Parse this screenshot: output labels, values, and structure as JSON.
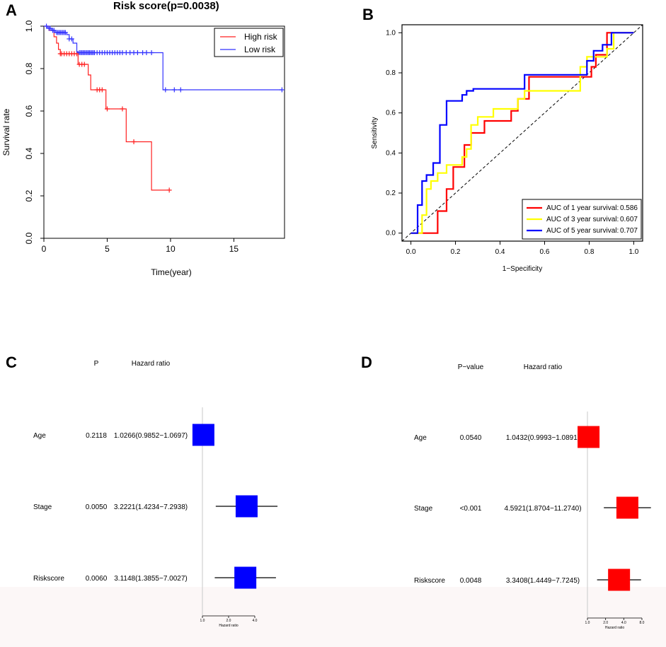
{
  "panels": {
    "A": {
      "letter": "A",
      "title": "Risk score(p=0.0038)"
    },
    "B": {
      "letter": "B"
    },
    "C": {
      "letter": "C"
    },
    "D": {
      "letter": "D"
    }
  },
  "chart_data": [
    {
      "id": "A",
      "type": "line",
      "subtype": "kaplan-meier",
      "title": "Risk score(p=0.0038)",
      "xlabel": "Time(year)",
      "ylabel": "Survival rate",
      "xlim": [
        0,
        19
      ],
      "ylim": [
        0,
        1
      ],
      "xticks": [
        "0",
        "5",
        "10",
        "15"
      ],
      "yticks": [
        "0.0",
        "0.2",
        "0.4",
        "0.6",
        "0.8",
        "1.0"
      ],
      "legend": {
        "position": "top-right",
        "entries": [
          "High risk",
          "Low risk"
        ]
      },
      "colors": {
        "High risk": "#ff2020",
        "Low risk": "#3333ff"
      },
      "series": [
        {
          "name": "High risk",
          "steps": [
            [
              0,
              1.0
            ],
            [
              0.4,
              0.98
            ],
            [
              0.8,
              0.95
            ],
            [
              1.0,
              0.92
            ],
            [
              1.15,
              0.89
            ],
            [
              1.3,
              0.87
            ],
            [
              2.7,
              0.82
            ],
            [
              3.5,
              0.77
            ],
            [
              3.7,
              0.7
            ],
            [
              4.9,
              0.61
            ],
            [
              6.5,
              0.455
            ],
            [
              8.5,
              0.227
            ],
            [
              9.9,
              0.227
            ]
          ],
          "censor_x": [
            1.3,
            1.4,
            1.6,
            1.8,
            2.0,
            2.2,
            2.4,
            2.6,
            2.8,
            3.0,
            3.2,
            4.2,
            4.4,
            4.6,
            5.0,
            6.2,
            7.1,
            9.9
          ]
        },
        {
          "name": "Low risk",
          "steps": [
            [
              0,
              1.0
            ],
            [
              0.3,
              0.99
            ],
            [
              0.6,
              0.98
            ],
            [
              0.9,
              0.97
            ],
            [
              1.8,
              0.96
            ],
            [
              2.0,
              0.94
            ],
            [
              2.3,
              0.92
            ],
            [
              2.6,
              0.88
            ],
            [
              2.7,
              0.875
            ],
            [
              9.4,
              0.7
            ],
            [
              18.8,
              0.7
            ]
          ],
          "censor_x": [
            0.2,
            0.4,
            0.5,
            0.7,
            0.8,
            1.0,
            1.1,
            1.2,
            1.3,
            1.4,
            1.5,
            1.6,
            1.7,
            2.0,
            2.2,
            2.8,
            2.9,
            3.0,
            3.1,
            3.2,
            3.3,
            3.4,
            3.5,
            3.6,
            3.7,
            3.8,
            3.9,
            4.0,
            4.2,
            4.4,
            4.6,
            4.8,
            5.0,
            5.2,
            5.4,
            5.6,
            5.8,
            6.0,
            6.2,
            6.5,
            6.8,
            7.1,
            7.4,
            7.8,
            8.1,
            8.5,
            9.6,
            10.3,
            10.8,
            18.8
          ]
        }
      ]
    },
    {
      "id": "B",
      "type": "line",
      "subtype": "roc",
      "xlabel": "1−Specificity",
      "ylabel": "Sensitivity",
      "xlim": [
        0,
        1
      ],
      "ylim": [
        0,
        1
      ],
      "xticks": [
        "0.0",
        "0.2",
        "0.4",
        "0.6",
        "0.8",
        "1.0"
      ],
      "yticks": [
        "0.0",
        "0.2",
        "0.4",
        "0.6",
        "0.8",
        "1.0"
      ],
      "legend": {
        "position": "bottom-right"
      },
      "series": [
        {
          "name": "AUC of 1 year survival",
          "auc": "0.586",
          "color": "#ff0000",
          "points": [
            [
              0,
              0
            ],
            [
              0.12,
              0
            ],
            [
              0.12,
              0.11
            ],
            [
              0.16,
              0.11
            ],
            [
              0.16,
              0.22
            ],
            [
              0.19,
              0.22
            ],
            [
              0.19,
              0.33
            ],
            [
              0.24,
              0.33
            ],
            [
              0.24,
              0.44
            ],
            [
              0.27,
              0.44
            ],
            [
              0.27,
              0.5
            ],
            [
              0.33,
              0.5
            ],
            [
              0.33,
              0.56
            ],
            [
              0.45,
              0.56
            ],
            [
              0.45,
              0.61
            ],
            [
              0.48,
              0.61
            ],
            [
              0.48,
              0.67
            ],
            [
              0.53,
              0.67
            ],
            [
              0.53,
              0.78
            ],
            [
              0.81,
              0.78
            ],
            [
              0.81,
              0.83
            ],
            [
              0.83,
              0.83
            ],
            [
              0.83,
              0.89
            ],
            [
              0.88,
              0.89
            ],
            [
              0.88,
              0.94
            ],
            [
              0.88,
              1.0
            ],
            [
              1,
              1
            ]
          ]
        },
        {
          "name": "AUC of 3 year survival",
          "auc": "0.607",
          "color": "#ffff00",
          "points": [
            [
              0,
              0
            ],
            [
              0.05,
              0
            ],
            [
              0.05,
              0.09
            ],
            [
              0.07,
              0.09
            ],
            [
              0.07,
              0.22
            ],
            [
              0.09,
              0.22
            ],
            [
              0.09,
              0.26
            ],
            [
              0.12,
              0.26
            ],
            [
              0.12,
              0.3
            ],
            [
              0.16,
              0.3
            ],
            [
              0.16,
              0.34
            ],
            [
              0.23,
              0.34
            ],
            [
              0.23,
              0.38
            ],
            [
              0.25,
              0.38
            ],
            [
              0.25,
              0.42
            ],
            [
              0.27,
              0.42
            ],
            [
              0.27,
              0.54
            ],
            [
              0.3,
              0.54
            ],
            [
              0.3,
              0.58
            ],
            [
              0.37,
              0.58
            ],
            [
              0.37,
              0.62
            ],
            [
              0.48,
              0.62
            ],
            [
              0.48,
              0.67
            ],
            [
              0.51,
              0.67
            ],
            [
              0.51,
              0.71
            ],
            [
              0.76,
              0.71
            ],
            [
              0.76,
              0.83
            ],
            [
              0.79,
              0.83
            ],
            [
              0.79,
              0.88
            ],
            [
              0.88,
              0.88
            ],
            [
              0.88,
              0.92
            ],
            [
              0.91,
              0.92
            ],
            [
              0.91,
              1.0
            ],
            [
              1,
              1
            ]
          ]
        },
        {
          "name": "AUC of 5 year survival",
          "auc": "0.707",
          "color": "#0000ff",
          "points": [
            [
              0,
              0
            ],
            [
              0.03,
              0
            ],
            [
              0.03,
              0.14
            ],
            [
              0.05,
              0.14
            ],
            [
              0.05,
              0.26
            ],
            [
              0.07,
              0.26
            ],
            [
              0.07,
              0.29
            ],
            [
              0.1,
              0.29
            ],
            [
              0.1,
              0.35
            ],
            [
              0.13,
              0.35
            ],
            [
              0.13,
              0.54
            ],
            [
              0.16,
              0.54
            ],
            [
              0.16,
              0.66
            ],
            [
              0.23,
              0.66
            ],
            [
              0.23,
              0.69
            ],
            [
              0.25,
              0.69
            ],
            [
              0.25,
              0.71
            ],
            [
              0.28,
              0.71
            ],
            [
              0.28,
              0.72
            ],
            [
              0.51,
              0.72
            ],
            [
              0.51,
              0.79
            ],
            [
              0.79,
              0.79
            ],
            [
              0.79,
              0.86
            ],
            [
              0.82,
              0.86
            ],
            [
              0.82,
              0.91
            ],
            [
              0.86,
              0.91
            ],
            [
              0.86,
              0.94
            ],
            [
              0.9,
              0.94
            ],
            [
              0.9,
              1.0
            ],
            [
              1,
              1
            ]
          ]
        }
      ]
    },
    {
      "id": "C",
      "type": "forest",
      "headers": {
        "p": "P",
        "hr": "Hazard ratio"
      },
      "xlabel": "Hazard ratio",
      "xticks": [
        1.0,
        2.0,
        4.0
      ],
      "xtick_labels": [
        "1.0",
        "2.0",
        "4.0"
      ],
      "xlim": [
        1.0,
        4.0
      ],
      "box_color": "#0000ff",
      "rows": [
        {
          "label": "Age",
          "p": "0.2118",
          "hr_text": "1.0266(0.9852−1.0697)",
          "hr": 1.0266,
          "lower": 0.9852,
          "upper": 1.0697
        },
        {
          "label": "Stage",
          "p": "0.0050",
          "hr_text": "3.2221(1.4234−7.2938)",
          "hr": 3.2221,
          "lower": 1.4234,
          "upper": 7.2938
        },
        {
          "label": "Riskscore",
          "p": "0.0060",
          "hr_text": "3.1148(1.3855−7.0027)",
          "hr": 3.1148,
          "lower": 1.3855,
          "upper": 7.0027
        }
      ]
    },
    {
      "id": "D",
      "type": "forest",
      "headers": {
        "p": "P−value",
        "hr": "Hazard ratio"
      },
      "xlabel": "Hazard ratio",
      "xticks": [
        1.0,
        2.0,
        4.0,
        8.0
      ],
      "xtick_labels": [
        "1.0",
        "2.0",
        "4.0",
        "8.0"
      ],
      "xlim": [
        1.0,
        8.0
      ],
      "box_color": "#ff0000",
      "rows": [
        {
          "label": "Age",
          "p": "0.0540",
          "hr_text": "1.0432(0.9993−1.0891)",
          "hr": 1.0432,
          "lower": 0.9993,
          "upper": 1.0891
        },
        {
          "label": "Stage",
          "p": "<0.001",
          "hr_text": "4.5921(1.8704−11.2740)",
          "hr": 4.5921,
          "lower": 1.8704,
          "upper": 11.274
        },
        {
          "label": "Riskscore",
          "p": "0.0048",
          "hr_text": "3.3408(1.4449−7.7245)",
          "hr": 3.3408,
          "lower": 1.4449,
          "upper": 7.7245
        }
      ]
    }
  ]
}
